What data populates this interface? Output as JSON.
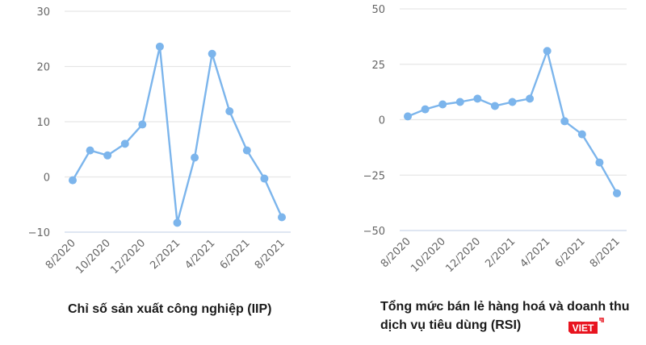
{
  "colors": {
    "series": "#7cb5ec",
    "grid": "#e6e6e6",
    "axis": "#ccd6eb",
    "tick_text": "#666666",
    "logo_red": "#e8141f"
  },
  "captions": {
    "left": "Chỉ số sản xuất công nghiệp (IIP)",
    "right_line1": "Tổng mức bán lẻ hàng hoá và doanh thu",
    "right_line2": "dịch vụ tiêu dùng (RSI)"
  },
  "logo": {
    "text": "VIET"
  },
  "chart_data": [
    {
      "type": "line",
      "title": "Chỉ số sản xuất công nghiệp (IIP)",
      "xlabel": "",
      "ylabel": "",
      "x": [
        "8/2020",
        "9/2020",
        "10/2020",
        "11/2020",
        "12/2020",
        "1/2021",
        "2/2021",
        "3/2021",
        "4/2021",
        "5/2021",
        "6/2021",
        "7/2021",
        "8/2021"
      ],
      "x_tick_labels": [
        "8/2020",
        "10/2020",
        "12/2020",
        "2/2021",
        "4/2021",
        "6/2021",
        "8/2021"
      ],
      "y_ticks": [
        30,
        20,
        10,
        0,
        -10
      ],
      "y_tick_labels": [
        "30",
        "20",
        "10",
        "0",
        "−10"
      ],
      "ylim": [
        -10,
        30
      ],
      "grid": true,
      "legend": "none",
      "series": [
        {
          "name": "IIP",
          "values": [
            -0.6,
            4.8,
            3.9,
            6.0,
            9.5,
            23.6,
            -8.3,
            3.5,
            22.3,
            11.9,
            4.8,
            -0.3,
            -7.3
          ]
        }
      ]
    },
    {
      "type": "line",
      "title": "Tổng mức bán lẻ hàng hoá và doanh thu dịch vụ tiêu dùng (RSI)",
      "xlabel": "",
      "ylabel": "",
      "x": [
        "8/2020",
        "9/2020",
        "10/2020",
        "11/2020",
        "12/2020",
        "1/2021",
        "2/2021",
        "3/2021",
        "4/2021",
        "5/2021",
        "6/2021",
        "7/2021",
        "8/2021"
      ],
      "x_tick_labels": [
        "8/2020",
        "10/2020",
        "12/2020",
        "2/2021",
        "4/2021",
        "6/2021",
        "8/2021"
      ],
      "y_ticks": [
        50,
        25,
        0,
        -25,
        -50
      ],
      "y_tick_labels": [
        "50",
        "25",
        "0",
        "−25",
        "−50"
      ],
      "ylim": [
        -50,
        50
      ],
      "grid": true,
      "legend": "none",
      "series": [
        {
          "name": "RSI",
          "values": [
            1.5,
            4.7,
            6.9,
            8.0,
            9.5,
            6.2,
            8.0,
            9.5,
            31.0,
            -0.7,
            -6.6,
            -19.3,
            -33.2
          ]
        }
      ]
    }
  ]
}
